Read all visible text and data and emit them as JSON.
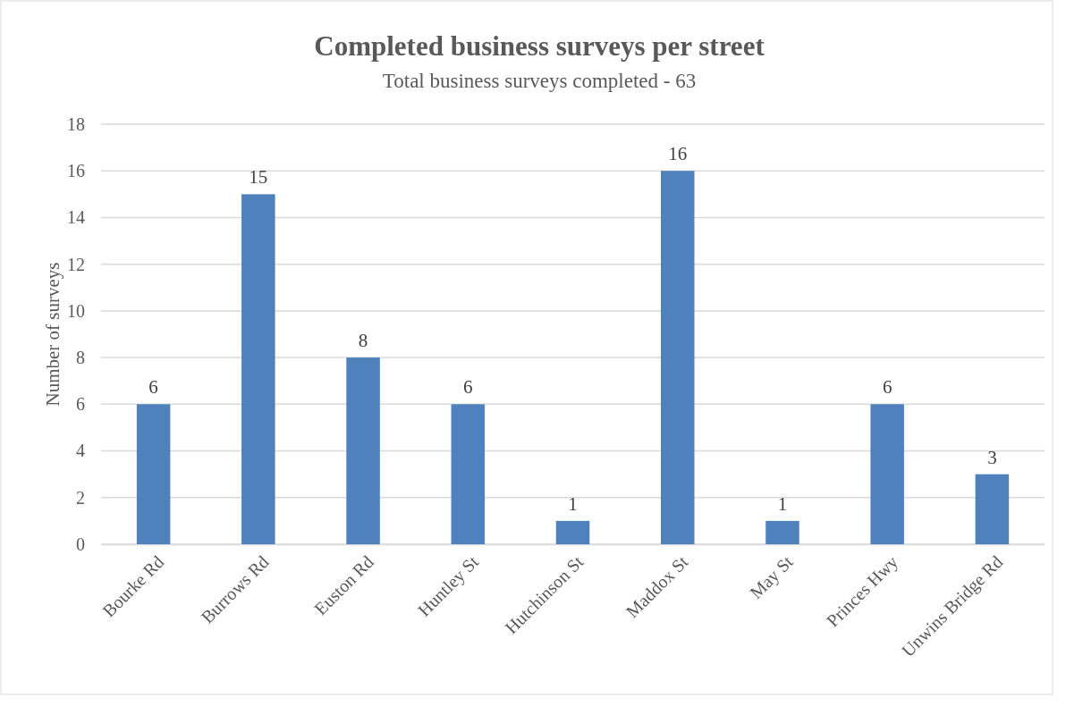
{
  "chart_data": {
    "type": "bar",
    "title": "Completed business surveys per street",
    "subtitle": "Total business surveys completed - 63",
    "ylabel": "Number of surveys",
    "categories": [
      "Bourke Rd",
      "Burrows Rd",
      "Euston Rd",
      "Huntley St",
      "Hutchinson St",
      "Maddox St",
      "May St",
      "Princes Hwy",
      "Unwins Bridge Rd"
    ],
    "values": [
      6,
      15,
      8,
      6,
      1,
      16,
      1,
      6,
      3
    ],
    "color": "#4f81bd",
    "ylim": [
      0,
      18
    ],
    "yticks": [
      0,
      2,
      4,
      6,
      8,
      10,
      12,
      14,
      16,
      18
    ],
    "grid": "y",
    "data_labels": true
  }
}
